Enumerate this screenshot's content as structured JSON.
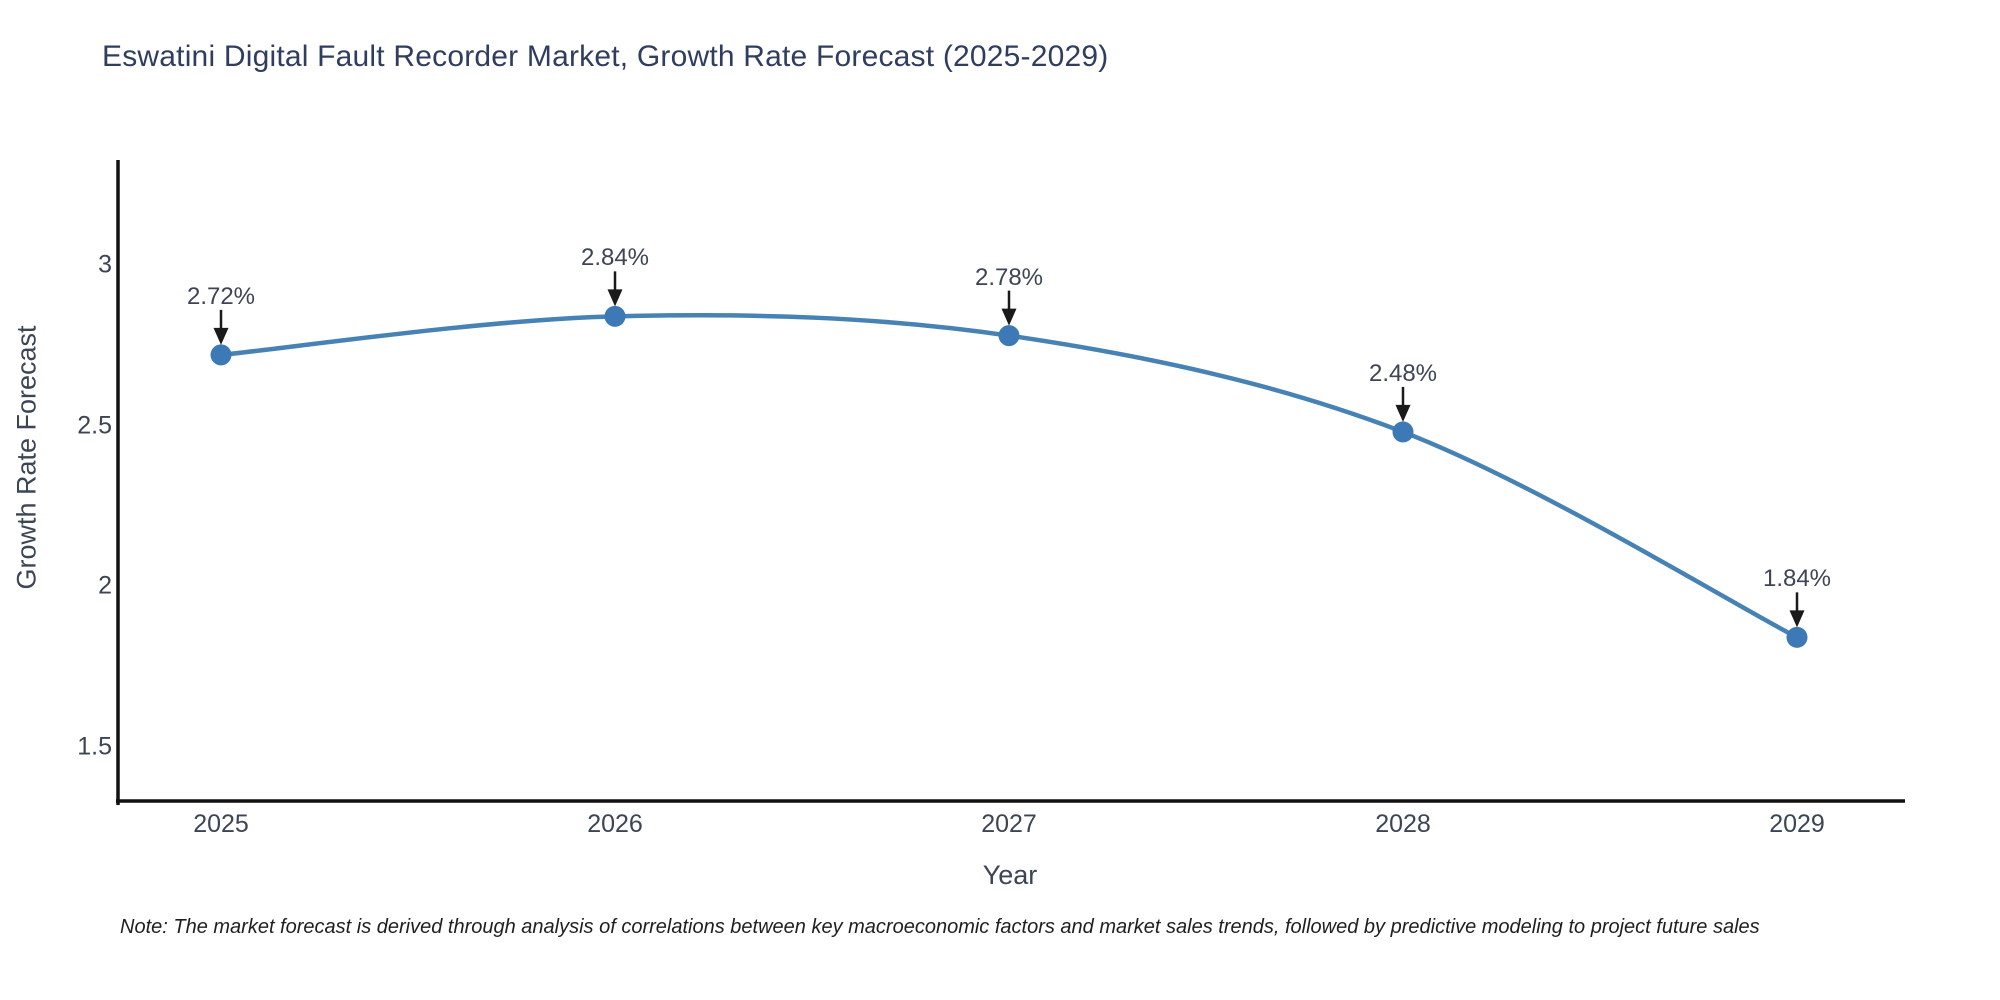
{
  "note": "Note: The market forecast is derived through analysis of correlations between key macroeconomic factors and market sales trends, followed by predictive modeling to project future sales",
  "chart_data": {
    "type": "line",
    "title": "Eswatini Digital Fault Recorder Market, Growth Rate Forecast (2025-2029)",
    "xlabel": "Year",
    "ylabel": "Growth Rate Forecast",
    "x": [
      2025,
      2026,
      2027,
      2028,
      2029
    ],
    "values": [
      2.72,
      2.84,
      2.78,
      2.48,
      1.84
    ],
    "point_labels": [
      "2.72%",
      "2.84%",
      "2.78%",
      "2.48%",
      "1.84%"
    ],
    "xticks": [
      "2025",
      "2026",
      "2027",
      "2028",
      "2029"
    ],
    "yticks": [
      1.5,
      2,
      2.5,
      3
    ],
    "ylim": [
      1.33,
      3.33
    ],
    "grid": false,
    "legend": false,
    "line_shape": "spline",
    "annotation_style": "value labels with downward arrows to each point",
    "colors": {
      "line": "#4682b4",
      "marker": "#3c79b6",
      "axis": "#111111",
      "arrow": "#1a1a1a",
      "title": "#2f3d5e",
      "tick": "#3b4554"
    }
  }
}
